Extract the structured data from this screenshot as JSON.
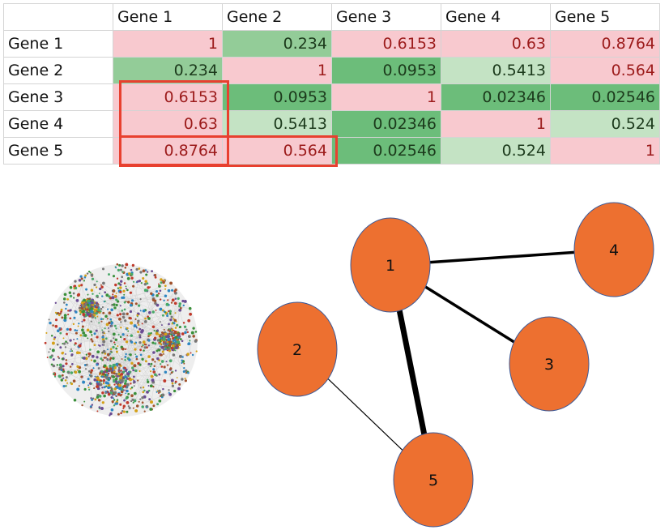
{
  "matrix": {
    "headers": [
      "Gene 1",
      "Gene 2",
      "Gene 3",
      "Gene 4",
      "Gene 5"
    ],
    "rows": [
      {
        "label": "Gene 1",
        "values": [
          "1",
          "0.234",
          "0.6153",
          "0.63",
          "0.8764"
        ]
      },
      {
        "label": "Gene 2",
        "values": [
          "0.234",
          "1",
          "0.0953",
          "0.5413",
          "0.564"
        ]
      },
      {
        "label": "Gene 3",
        "values": [
          "0.6153",
          "0.0953",
          "1",
          "0.02346",
          "0.02546"
        ]
      },
      {
        "label": "Gene 4",
        "values": [
          "0.63",
          "0.5413",
          "0.02346",
          "1",
          "0.524"
        ]
      },
      {
        "label": "Gene 5",
        "values": [
          "0.8764",
          "0.564",
          "0.02546",
          "0.524",
          "1"
        ]
      }
    ],
    "colors": {
      "high_bg": "#f8c9cf",
      "high_text": "#9c1b1b",
      "low_dark_bg": "#6cbd7a",
      "low_mid_bg": "#93cc98",
      "low_light_bg": "#c4e3c4",
      "low_text": "#1c3a1c",
      "highlight_border": "#e8402f"
    }
  },
  "network": {
    "nodes": [
      {
        "id": "1",
        "label": "1"
      },
      {
        "id": "2",
        "label": "2"
      },
      {
        "id": "3",
        "label": "3"
      },
      {
        "id": "4",
        "label": "4"
      },
      {
        "id": "5",
        "label": "5"
      }
    ],
    "edges": [
      {
        "from": "1",
        "to": "4",
        "weight": "medium"
      },
      {
        "from": "1",
        "to": "3",
        "weight": "medium"
      },
      {
        "from": "1",
        "to": "5",
        "weight": "heavy"
      },
      {
        "from": "2",
        "to": "5",
        "weight": "thin"
      }
    ],
    "node_color": "#ed7030",
    "node_stroke": "#3b5998",
    "edge_color": "#000000"
  },
  "hairball": {
    "colors": [
      "#3a8f3a",
      "#c0392b",
      "#6a4c93",
      "#2e86c1",
      "#d4a017",
      "#777777",
      "#48a868",
      "#a0522d"
    ]
  }
}
